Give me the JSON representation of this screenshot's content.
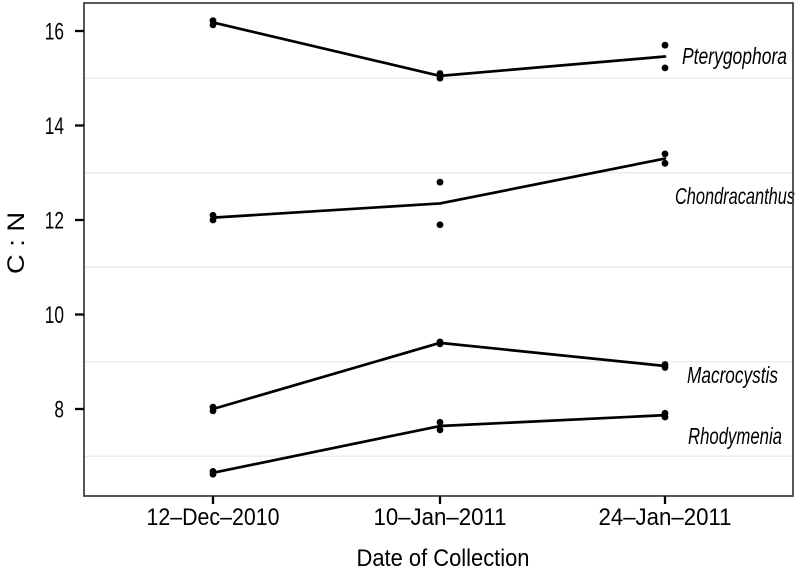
{
  "figure": {
    "background": "#ffffff",
    "panel_border_color": "#3a3a3a",
    "text_color": "#000000"
  },
  "chart_data": {
    "type": "line",
    "title": "",
    "xlabel": "Date of Collection",
    "ylabel": "C : N",
    "x_categories": [
      "12–Dec–2010",
      "10–Jan–2011",
      "24–Jan–2011"
    ],
    "yticks": [
      8,
      10,
      12,
      14,
      16
    ],
    "ylim": [
      6.2,
      16.6
    ],
    "grid": "faint horizontal minor gridlines only",
    "minor_gridlines": [
      7,
      9,
      11,
      13,
      15
    ],
    "gridline_color": "#ececec",
    "line_color": "#000000",
    "marker": "filled dot",
    "legend": "direct italic series labels at right of lines",
    "series": [
      {
        "name": "Pterygophora",
        "line_values": [
          16.18,
          15.05,
          15.46
        ],
        "points": [
          [
            16.13,
            16.22
          ],
          [
            15.0,
            15.1
          ],
          [
            15.22,
            15.7
          ]
        ]
      },
      {
        "name": "Chondracanthus",
        "line_values": [
          12.05,
          12.35,
          13.3
        ],
        "points": [
          [
            12.0,
            12.1
          ],
          [
            11.9,
            12.8
          ],
          [
            13.2,
            13.4
          ]
        ]
      },
      {
        "name": "Macrocystis",
        "line_values": [
          8.0,
          9.4,
          8.91
        ],
        "points": [
          [
            7.96,
            8.04
          ],
          [
            9.38,
            9.42
          ],
          [
            8.88,
            8.94
          ]
        ]
      },
      {
        "name": "Rhodymenia",
        "line_values": [
          6.65,
          7.64,
          7.87
        ],
        "points": [
          [
            6.62,
            6.68
          ],
          [
            7.56,
            7.72
          ],
          [
            7.83,
            7.91
          ]
        ]
      }
    ]
  }
}
